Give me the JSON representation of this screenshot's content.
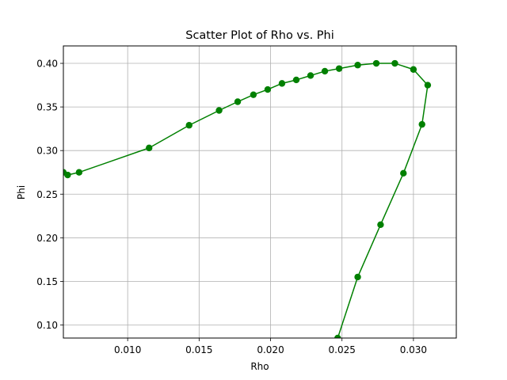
{
  "chart_data": {
    "type": "scatter",
    "title": "Scatter Plot of Rho vs. Phi",
    "xlabel": "Rho",
    "ylabel": "Phi",
    "xlim": [
      0.0055,
      0.033
    ],
    "ylim": [
      0.085,
      0.42
    ],
    "x_ticks": [
      0.01,
      0.015,
      0.02,
      0.025,
      0.03
    ],
    "x_tick_labels": [
      "0.010",
      "0.015",
      "0.020",
      "0.025",
      "0.030"
    ],
    "y_ticks": [
      0.1,
      0.15,
      0.2,
      0.25,
      0.3,
      0.35,
      0.4
    ],
    "y_tick_labels": [
      "0.10",
      "0.15",
      "0.20",
      "0.25",
      "0.30",
      "0.35",
      "0.40"
    ],
    "grid": true,
    "connected": true,
    "marker": "circle",
    "color": "#008000",
    "series": [
      {
        "x": [
          0.0055,
          0.0058,
          0.0066,
          0.0115,
          0.0143,
          0.0164,
          0.0177,
          0.0188,
          0.0198,
          0.0208,
          0.0218,
          0.0228,
          0.0238,
          0.0248,
          0.0261,
          0.0274,
          0.0287,
          0.03,
          0.031,
          0.0306,
          0.0293,
          0.0277,
          0.0261,
          0.0247
        ],
        "y": [
          0.275,
          0.272,
          0.275,
          0.303,
          0.329,
          0.346,
          0.356,
          0.364,
          0.37,
          0.377,
          0.381,
          0.386,
          0.391,
          0.394,
          0.398,
          0.4,
          0.4,
          0.393,
          0.375,
          0.33,
          0.274,
          0.215,
          0.155,
          0.085
        ]
      }
    ]
  }
}
